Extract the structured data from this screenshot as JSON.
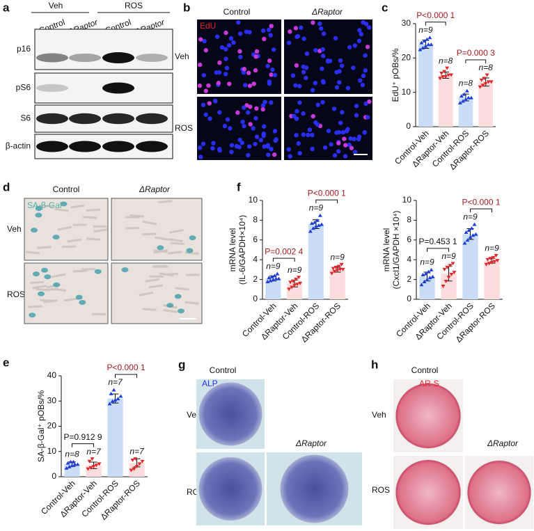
{
  "panel_letters": [
    "a",
    "b",
    "c",
    "d",
    "e",
    "f",
    "g",
    "h"
  ],
  "blot": {
    "groups": [
      "Veh",
      "ROS"
    ],
    "lanes": [
      "Control",
      "ΔRaptor",
      "Control",
      "ΔRaptor"
    ],
    "rows": [
      "p16",
      "pS6",
      "S6",
      "β-actin"
    ]
  },
  "edu": {
    "columns": [
      "Control",
      "ΔRaptor"
    ],
    "rows": [
      "Veh",
      "ROS"
    ],
    "stain": "EdU"
  },
  "sagal": {
    "columns": [
      "Control",
      "ΔRaptor"
    ],
    "rows": [
      "Veh",
      "ROS"
    ],
    "stain": "SA-β-Gal"
  },
  "alp": {
    "top_label": "Control",
    "corner_label": "ΔRaptor",
    "rows": [
      "Veh",
      "ROS"
    ],
    "stain": "ALP"
  },
  "ars": {
    "top_label": "Control",
    "corner_label": "ΔRaptor",
    "rows": [
      "Veh",
      "ROS"
    ],
    "stain": "AR-S"
  },
  "chart_data": [
    {
      "type": "bar",
      "ylabel": [
        "EdU⁺ pOBs/%"
      ],
      "categories": [
        "Control-Veh",
        "ΔRaptor-Veh",
        "Control-ROS",
        "ΔRaptor-ROS"
      ],
      "values": [
        24,
        15,
        8.5,
        13
      ],
      "errors": [
        1.2,
        0.9,
        1.0,
        1.2
      ],
      "points": [
        [
          22.5,
          23,
          23.5,
          24,
          24,
          24.5,
          25,
          25.5,
          26
        ],
        [
          14,
          14.5,
          14.5,
          15,
          15,
          15.5,
          16,
          17
        ],
        [
          7,
          7.5,
          8,
          8.5,
          8.5,
          9,
          9.5,
          10.5
        ],
        [
          11.5,
          12,
          12.5,
          13,
          13,
          13.5,
          14,
          15
        ]
      ],
      "n_labels": [
        "n=9",
        "n=8",
        "n=8",
        "n=8"
      ],
      "comparisons": [
        {
          "label": "P<0.000 1",
          "color": "#a3191e"
        },
        {
          "label": "P=0.000 3",
          "color": "#a3191e"
        }
      ],
      "colors": [
        "#c9def6",
        "#fcdcdc",
        "#c9def6",
        "#fcdcdc"
      ],
      "marker_colors": [
        "#1f3fd8",
        "#e0282b",
        "#1f3fd8",
        "#e0282b"
      ],
      "ylim": [
        0,
        30
      ],
      "yticks": [
        0,
        10,
        20,
        30
      ]
    },
    {
      "type": "bar",
      "ylabel": [
        "mRNA level",
        "(IL-6/GAPDH×10⁴)"
      ],
      "categories": [
        "Control-Veh",
        "ΔRaptor-Veh",
        "Control-ROS",
        "ΔRaptor-ROS"
      ],
      "values": [
        2.1,
        1.6,
        7.6,
        3.0
      ],
      "errors": [
        0.25,
        0.35,
        0.45,
        0.25
      ],
      "points": [
        [
          1.8,
          1.9,
          2.0,
          2.1,
          2.1,
          2.2,
          2.3,
          2.4,
          2.6
        ],
        [
          1.0,
          1.2,
          1.4,
          1.5,
          1.6,
          1.7,
          1.8,
          2.0,
          2.2
        ],
        [
          6.9,
          7.2,
          7.4,
          7.5,
          7.6,
          7.7,
          7.8,
          8.0,
          8.5
        ],
        [
          2.6,
          2.8,
          2.9,
          3.0,
          3.0,
          3.1,
          3.2,
          3.3,
          3.5
        ]
      ],
      "n_labels": [
        "n=9",
        "n=9",
        "n=9",
        "n=9"
      ],
      "comparisons": [
        {
          "label": "P=0.002 4",
          "color": "#a3191e"
        },
        {
          "label": "P<0.000 1",
          "color": "#a3191e"
        }
      ],
      "colors": [
        "#c9def6",
        "#fcdcdc",
        "#c9def6",
        "#fcdcdc"
      ],
      "marker_colors": [
        "#1f3fd8",
        "#e0282b",
        "#1f3fd8",
        "#e0282b"
      ],
      "ylim": [
        0,
        10
      ],
      "yticks": [
        0,
        2,
        4,
        6,
        8,
        10
      ]
    },
    {
      "type": "bar",
      "ylabel": [
        "mRNA level",
        "(Cxcl1/GAPDH ×10⁴)"
      ],
      "categories": [
        "Control-Veh",
        "ΔRaptor-Veh",
        "Control-ROS",
        "ΔRaptor-ROS"
      ],
      "values": [
        2.3,
        2.6,
        6.6,
        3.9
      ],
      "errors": [
        0.45,
        0.75,
        0.55,
        0.25
      ],
      "points": [
        [
          1.5,
          1.8,
          2.0,
          2.2,
          2.3,
          2.5,
          2.6,
          2.8,
          3.0
        ],
        [
          1.3,
          1.8,
          2.2,
          2.5,
          2.7,
          3.0,
          3.2,
          3.4,
          3.6
        ],
        [
          5.7,
          6.0,
          6.3,
          6.5,
          6.6,
          6.8,
          7.0,
          7.2,
          7.6
        ],
        [
          3.5,
          3.6,
          3.7,
          3.8,
          3.9,
          4.0,
          4.1,
          4.2,
          4.4
        ]
      ],
      "n_labels": [
        "n=9",
        "n=9",
        "n=9",
        "n=9"
      ],
      "comparisons": [
        {
          "label": "P=0.453 1",
          "color": "#111111"
        },
        {
          "label": "P<0.000 1",
          "color": "#a3191e"
        }
      ],
      "colors": [
        "#c9def6",
        "#fcdcdc",
        "#c9def6",
        "#fcdcdc"
      ],
      "marker_colors": [
        "#1f3fd8",
        "#e0282b",
        "#1f3fd8",
        "#e0282b"
      ],
      "ylim": [
        0,
        10
      ],
      "yticks": [
        0,
        2,
        4,
        6,
        8,
        10
      ]
    },
    {
      "type": "bar",
      "ylabel": [
        "SA-β-Gal⁺ pOBs/%"
      ],
      "categories": [
        "Control-Veh",
        "ΔRaptor-Veh",
        "Control-ROS",
        "ΔRaptor-ROS"
      ],
      "values": [
        5,
        4.5,
        31,
        5.5
      ],
      "errors": [
        0.9,
        1.3,
        1.8,
        1.6
      ],
      "points": [
        [
          3.5,
          4,
          4.5,
          5,
          5,
          5.5,
          6,
          6
        ],
        [
          3,
          3.5,
          4,
          4.5,
          5,
          6,
          7
        ],
        [
          29,
          30,
          30.5,
          31,
          32,
          33,
          34.5
        ],
        [
          2.5,
          3,
          4,
          5,
          6,
          6.5,
          7
        ]
      ],
      "n_labels": [
        "n=8",
        "n=7",
        "n=7",
        "n=7"
      ],
      "comparisons": [
        {
          "label": "P=0.912 9",
          "color": "#111111"
        },
        {
          "label": "P<0.000 1",
          "color": "#a3191e"
        }
      ],
      "colors": [
        "#c9def6",
        "#fcdcdc",
        "#c9def6",
        "#fcdcdc"
      ],
      "marker_colors": [
        "#1f3fd8",
        "#e0282b",
        "#1f3fd8",
        "#e0282b"
      ],
      "ylim": [
        0,
        40
      ],
      "yticks": [
        0,
        10,
        20,
        30,
        40
      ]
    }
  ]
}
